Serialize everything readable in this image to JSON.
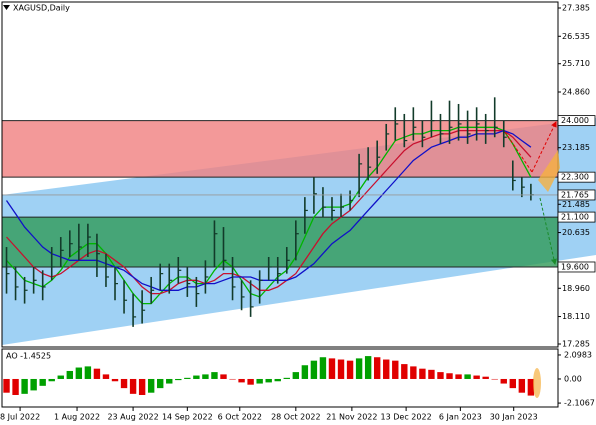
{
  "chart_data": [
    {
      "type": "ohlc",
      "title": "XAGUSD,Daily",
      "close": [
        19.4,
        19.0,
        18.9,
        19.2,
        19.0,
        19.6,
        20.1,
        20.3,
        20.2,
        20.5,
        20.0,
        19.3,
        19.1,
        18.6,
        18.1,
        18.3,
        18.9,
        19.4,
        19.2,
        19.5,
        19.1,
        18.8,
        19.3,
        20.6,
        19.8,
        19.0,
        18.7,
        18.4,
        19.2,
        19.6,
        19.4,
        19.8,
        20.6,
        21.3,
        21.8,
        21.4,
        21.3,
        21.4,
        21.6,
        22.7,
        22.6,
        22.9,
        23.6,
        23.9,
        23.4,
        23.8,
        23.5,
        24.0,
        23.6,
        23.8,
        23.9,
        23.6,
        23.9,
        23.7,
        23.8,
        23.5,
        22.2,
        22.0,
        21.77
      ],
      "high": [
        20.2,
        19.6,
        19.3,
        19.6,
        19.5,
        20.2,
        20.5,
        20.7,
        20.9,
        20.9,
        20.6,
        20.0,
        19.6,
        19.2,
        18.8,
        18.9,
        19.3,
        19.7,
        19.7,
        19.9,
        19.6,
        19.3,
        19.8,
        21.0,
        20.8,
        19.9,
        19.2,
        19.2,
        19.5,
        19.9,
        19.9,
        20.2,
        21.0,
        21.7,
        22.3,
        22.0,
        21.7,
        21.8,
        21.9,
        23.0,
        23.2,
        23.4,
        23.9,
        24.4,
        24.2,
        24.4,
        24.0,
        24.6,
        24.2,
        24.6,
        24.5,
        24.3,
        24.4,
        24.2,
        24.7,
        24.0,
        22.8,
        22.3,
        22.1
      ],
      "low": [
        18.8,
        18.6,
        18.5,
        18.8,
        18.6,
        19.2,
        19.6,
        19.9,
        19.8,
        19.9,
        19.3,
        19.0,
        18.6,
        18.2,
        17.8,
        17.9,
        18.5,
        18.9,
        18.8,
        19.1,
        18.7,
        18.4,
        18.8,
        19.6,
        19.5,
        18.6,
        18.3,
        18.1,
        18.5,
        19.2,
        19.1,
        19.4,
        19.8,
        20.6,
        21.2,
        21.1,
        21.0,
        21.1,
        21.3,
        21.7,
        22.2,
        22.4,
        23.1,
        23.4,
        23.2,
        23.4,
        23.2,
        23.5,
        23.3,
        23.3,
        23.4,
        23.3,
        23.4,
        23.3,
        23.5,
        23.2,
        21.9,
        21.7,
        21.6
      ],
      "color": "#123b2a",
      "series": [
        {
          "color": "#00b400",
          "values": [
            19.8,
            19.5,
            19.2,
            19.1,
            19.0,
            19.2,
            19.5,
            19.9,
            20.1,
            20.3,
            20.3,
            20.0,
            19.6,
            19.2,
            18.8,
            18.5,
            18.5,
            18.8,
            19.1,
            19.3,
            19.3,
            19.1,
            19.1,
            19.5,
            19.8,
            19.6,
            19.2,
            18.8,
            18.7,
            19.0,
            19.3,
            19.5,
            19.9,
            20.5,
            21.1,
            21.4,
            21.4,
            21.4,
            21.5,
            21.9,
            22.3,
            22.6,
            23.0,
            23.4,
            23.5,
            23.6,
            23.6,
            23.7,
            23.7,
            23.7,
            23.8,
            23.8,
            23.8,
            23.8,
            23.8,
            23.7,
            23.3,
            22.8,
            22.3
          ]
        },
        {
          "color": "#c8102e",
          "values": [
            20.5,
            20.2,
            19.9,
            19.6,
            19.4,
            19.3,
            19.4,
            19.6,
            19.8,
            20.0,
            20.1,
            20.0,
            19.8,
            19.6,
            19.3,
            19.0,
            18.8,
            18.8,
            18.9,
            19.1,
            19.2,
            19.2,
            19.1,
            19.2,
            19.4,
            19.4,
            19.3,
            19.1,
            18.9,
            18.9,
            19.0,
            19.2,
            19.4,
            19.8,
            20.2,
            20.6,
            20.9,
            21.1,
            21.3,
            21.6,
            21.9,
            22.2,
            22.5,
            22.8,
            23.1,
            23.3,
            23.4,
            23.5,
            23.6,
            23.6,
            23.7,
            23.7,
            23.7,
            23.7,
            23.7,
            23.7,
            23.5,
            23.2,
            22.9
          ]
        },
        {
          "color": "#1010c8",
          "values": [
            21.6,
            21.2,
            20.8,
            20.5,
            20.2,
            20.0,
            19.9,
            19.8,
            19.8,
            19.8,
            19.8,
            19.7,
            19.6,
            19.5,
            19.3,
            19.1,
            19.0,
            18.9,
            18.9,
            18.9,
            19.0,
            19.0,
            19.1,
            19.1,
            19.2,
            19.3,
            19.3,
            19.3,
            19.2,
            19.2,
            19.2,
            19.2,
            19.3,
            19.5,
            19.7,
            20.0,
            20.3,
            20.5,
            20.7,
            21.0,
            21.3,
            21.6,
            21.9,
            22.2,
            22.5,
            22.8,
            23.0,
            23.2,
            23.3,
            23.4,
            23.5,
            23.5,
            23.6,
            23.6,
            23.6,
            23.7,
            23.6,
            23.4,
            23.2
          ]
        }
      ],
      "xlim": [
        -0.5,
        61
      ],
      "xticks": [
        {
          "value": 1.5,
          "label": "8 Jul 2022"
        },
        {
          "value": 7.8,
          "label": "1 Aug 2022"
        },
        {
          "value": 14,
          "label": "23 Aug 2022"
        },
        {
          "value": 20,
          "label": "14 Sep 2022"
        },
        {
          "value": 25.8,
          "label": "6 Oct 2022"
        },
        {
          "value": 32,
          "label": "28 Oct 2022"
        },
        {
          "value": 38.2,
          "label": "21 Nov 2022"
        },
        {
          "value": 44.2,
          "label": "13 Dec 2022"
        },
        {
          "value": 50.2,
          "label": "6 Jan 2023"
        },
        {
          "value": 56.1,
          "label": "30 Jan 2023"
        }
      ],
      "ylim": [
        17.285,
        27.385
      ],
      "yticks": [
        27.385,
        26.535,
        {
          "value": 25.71,
          "label": "25.710"
        },
        {
          "value": 24.86,
          "label": "24.860"
        },
        23.185,
        21.485,
        20.635,
        {
          "value": 18.96,
          "label": "18.960"
        },
        {
          "value": 18.11,
          "label": "18.110"
        },
        17.285
      ],
      "zones": [
        {
          "top": {
            "value": 24,
            "label": "24.000"
          },
          "bottom": {
            "value": 22.3,
            "label": "22.300"
          },
          "color": "#f07f7f"
        },
        {
          "top": {
            "value": 21.1,
            "label": "21.100"
          },
          "bottom": {
            "value": 19.6,
            "label": "19.600"
          },
          "color": "#2f9a58"
        }
      ],
      "current": {
        "value": 21.765,
        "label": "21.765"
      }
    },
    {
      "type": "bar",
      "title": "AO -1.4525",
      "values": [
        -1.2,
        -1.4,
        -1.3,
        -1.0,
        -0.6,
        -0.2,
        0.3,
        0.7,
        1.0,
        1.1,
        0.9,
        0.4,
        -0.2,
        -0.8,
        -1.3,
        -1.4,
        -1.2,
        -0.8,
        -0.4,
        -0.1,
        0.1,
        0.3,
        0.4,
        0.6,
        0.4,
        0.0,
        -0.3,
        -0.5,
        -0.4,
        -0.3,
        -0.2,
        0.1,
        0.6,
        1.2,
        1.6,
        1.9,
        1.8,
        1.7,
        1.6,
        1.8,
        2.0,
        1.9,
        1.7,
        1.6,
        1.3,
        1.1,
        0.9,
        0.8,
        0.6,
        0.5,
        0.4,
        0.4,
        0.3,
        0.2,
        0.0,
        -0.4,
        -0.8,
        -1.2,
        -1.4525
      ],
      "up_color": "#00a000",
      "down_color": "#e00000",
      "ylim": [
        -2.45,
        2.62
      ],
      "yticks": [
        2.0983,
        {
          "value": 0,
          "label": "0.00"
        },
        -2.1067
      ]
    }
  ]
}
